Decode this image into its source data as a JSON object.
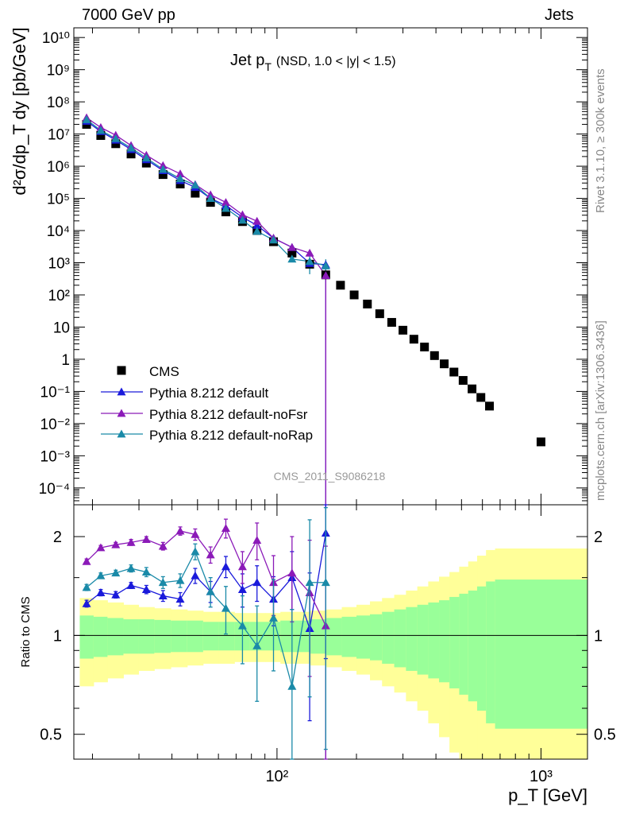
{
  "header": {
    "left": "7000 GeV pp",
    "right": "Jets",
    "rivet": "Rivet 3.1.10, ≥ 300k events",
    "mcplots": "mcplots.cern.ch [arXiv:1306.3436]",
    "analysis_tag": "CMS_2011_S9086218"
  },
  "chart_data": [
    {
      "type": "scatter",
      "title": "Jet p_T (NSD, 1.0 < |y| < 1.5)",
      "title_main": "Jet p",
      "title_sub": "T",
      "title_rest": "(NSD, 1.0 < |y| < 1.5)",
      "xlabel": "p_T [GeV]",
      "ylabel": "d²σ/dp_T dy [pb/GeV]",
      "x_scale": "log",
      "y_scale": "log",
      "xlim": [
        17,
        1500
      ],
      "ylim": [
        3e-05,
        20000000000.0
      ],
      "xtick_labels": [
        "10²",
        "10³"
      ],
      "ytick_labels": [
        "10⁻⁴",
        "10⁻³",
        "10⁻²",
        "10⁻¹",
        "1",
        "10",
        "10²",
        "10³",
        "10⁴",
        "10⁵",
        "10⁶",
        "10⁷",
        "10⁸",
        "10⁹",
        "10¹⁰"
      ],
      "legend_position": "lower-left",
      "series": [
        {
          "name": "CMS",
          "marker": "square",
          "color": "#000000",
          "x": [
            19,
            21.5,
            24.5,
            28,
            32,
            37,
            43,
            49,
            56,
            64,
            74,
            84,
            97,
            114,
            133,
            153,
            174,
            196,
            220,
            245,
            272,
            300,
            330,
            362,
            395,
            430,
            468,
            507,
            548,
            592,
            638,
            1000
          ],
          "y": [
            20000000.0,
            9000000.0,
            5000000.0,
            2400000.0,
            1250000.0,
            550000.0,
            280000.0,
            145000.0,
            75000.0,
            38000.0,
            19000.0,
            10000.0,
            4500.0,
            2000.0,
            900,
            420,
            200,
            100,
            52,
            26,
            14,
            8,
            4.2,
            2.4,
            1.3,
            0.72,
            0.4,
            0.22,
            0.12,
            0.065,
            0.035,
            0.0027
          ]
        },
        {
          "name": "Pythia 8.212 default",
          "marker": "triangle",
          "color": "#1a1adb",
          "x": [
            19,
            21.5,
            24.5,
            28,
            32,
            37,
            43,
            49,
            56,
            64,
            74,
            84,
            97,
            114,
            133,
            153
          ],
          "y": [
            25000000.0,
            12000000.0,
            6500000.0,
            3300000.0,
            1600000.0,
            730000.0,
            360000.0,
            220000.0,
            100000.0,
            60000.0,
            26000.0,
            14500.0,
            5800.0,
            3000.0,
            950,
            870
          ],
          "ratio": [
            1.25,
            1.35,
            1.33,
            1.42,
            1.38,
            1.32,
            1.29,
            1.52,
            1.36,
            1.62,
            1.38,
            1.45,
            1.29,
            1.5,
            1.05,
            2.05
          ],
          "ratio_err": [
            0.03,
            0.03,
            0.03,
            0.03,
            0.04,
            0.05,
            0.06,
            0.08,
            0.1,
            0.12,
            0.16,
            0.18,
            0.22,
            0.3,
            0.5,
            1.2
          ]
        },
        {
          "name": "Pythia 8.212 default-noFsr",
          "marker": "triangle",
          "color": "#8b1ab8",
          "x": [
            19,
            21.5,
            24.5,
            28,
            32,
            37,
            43,
            49,
            56,
            64,
            74,
            84,
            97,
            114,
            133,
            153
          ],
          "y": [
            32000000.0,
            16000000.0,
            9200000.0,
            4400000.0,
            2200000.0,
            1050000.0,
            580000.0,
            270000.0,
            130000.0,
            75000.0,
            31000.0,
            19500.0,
            5800.0,
            3000.0,
            2000.0,
            400
          ],
          "ratio": [
            1.68,
            1.85,
            1.89,
            1.92,
            1.96,
            1.87,
            2.08,
            2.03,
            1.76,
            2.12,
            1.62,
            1.95,
            1.45,
            1.55,
            1.35,
            1.07
          ],
          "ratio_err": [
            0.03,
            0.03,
            0.03,
            0.04,
            0.04,
            0.05,
            0.06,
            0.08,
            0.1,
            0.14,
            0.18,
            0.25,
            0.3,
            0.45,
            0.6,
            0.8
          ]
        },
        {
          "name": "Pythia 8.212 default-noRap",
          "marker": "triangle",
          "color": "#1a8aa8",
          "x": [
            19,
            21.5,
            24.5,
            28,
            32,
            37,
            43,
            49,
            56,
            64,
            74,
            84,
            97,
            114,
            133,
            153
          ],
          "y": [
            28000000.0,
            13000000.0,
            7200000.0,
            3700000.0,
            1800000.0,
            800000.0,
            410000.0,
            260000.0,
            100000.0,
            49000.0,
            21000.0,
            9500.0,
            5100.0,
            1300.0,
            1100.0,
            800
          ],
          "ratio": [
            1.4,
            1.52,
            1.55,
            1.6,
            1.56,
            1.45,
            1.47,
            1.8,
            1.36,
            1.21,
            1.07,
            0.93,
            1.13,
            0.7,
            1.45,
            1.45
          ],
          "ratio_err": [
            0.03,
            0.03,
            0.03,
            0.04,
            0.05,
            0.06,
            0.07,
            0.1,
            0.14,
            0.2,
            0.25,
            0.3,
            0.35,
            0.5,
            0.8,
            1.0
          ]
        }
      ]
    },
    {
      "type": "line",
      "ylabel": "Ratio to CMS",
      "xlabel": "p_T [GeV]",
      "x_scale": "log",
      "y_scale": "log",
      "xlim": [
        17,
        1500
      ],
      "ylim": [
        0.42,
        2.5
      ],
      "ytick_labels": [
        "0.5",
        "1",
        "2"
      ],
      "bands": {
        "x_edges": [
          17.9,
          20.2,
          22.8,
          26.2,
          29.9,
          34.3,
          39.6,
          45.7,
          52.5,
          60.2,
          69,
          79,
          90.5,
          103,
          117,
          134,
          154,
          176,
          200,
          225,
          250,
          278,
          308,
          340,
          374,
          411,
          450,
          490,
          530,
          573,
          619,
          670,
          1500
        ],
        "green_half_width": [
          0.15,
          0.14,
          0.13,
          0.12,
          0.12,
          0.115,
          0.11,
          0.11,
          0.1,
          0.1,
          0.1,
          0.1,
          0.1,
          0.11,
          0.11,
          0.12,
          0.13,
          0.14,
          0.15,
          0.16,
          0.18,
          0.2,
          0.22,
          0.24,
          0.26,
          0.28,
          0.31,
          0.34,
          0.37,
          0.41,
          0.46,
          0.48
        ],
        "yellow_half_width": [
          0.3,
          0.28,
          0.26,
          0.24,
          0.22,
          0.21,
          0.2,
          0.19,
          0.18,
          0.18,
          0.17,
          0.17,
          0.17,
          0.18,
          0.18,
          0.19,
          0.2,
          0.22,
          0.24,
          0.27,
          0.3,
          0.33,
          0.37,
          0.41,
          0.46,
          0.51,
          0.56,
          0.62,
          0.68,
          0.75,
          0.82,
          0.84
        ]
      }
    }
  ]
}
